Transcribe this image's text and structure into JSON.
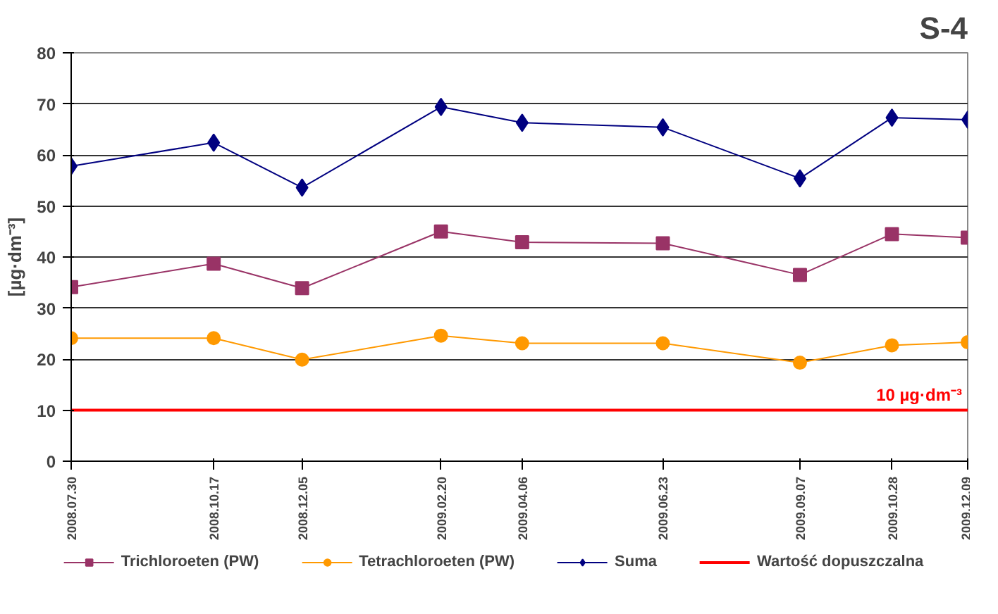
{
  "chart_data": {
    "type": "line",
    "title": "S-4",
    "ylabel": "[µg·dm⁻³]",
    "x": [
      "2008-07-30",
      "2008-10-17",
      "2008-12-05",
      "2009-02-20",
      "2009-04-06",
      "2009-06-23",
      "2009-09-07",
      "2009-10-28",
      "2009-12-09"
    ],
    "xlim": [
      "2008-07-30",
      "2009-12-09"
    ],
    "xticks": [
      {
        "value": "2008-07-30",
        "label": "2008.07.30"
      },
      {
        "value": "2008-10-17",
        "label": "2008.10.17"
      },
      {
        "value": "2008-12-05",
        "label": "2008.12.05"
      },
      {
        "value": "2009-02-20",
        "label": "2009.02.20"
      },
      {
        "value": "2009-04-06",
        "label": "2009.04.06"
      },
      {
        "value": "2009-06-23",
        "label": "2009.06.23"
      },
      {
        "value": "2009-09-07",
        "label": "2009.09.07"
      },
      {
        "value": "2009-10-28",
        "label": "2009.10.28"
      },
      {
        "value": "2009-12-09",
        "label": "2009.12.09"
      }
    ],
    "ylim": [
      0,
      80
    ],
    "yticks": [
      0,
      10,
      20,
      30,
      40,
      50,
      60,
      70,
      80
    ],
    "series": [
      {
        "name": "Trichloroeten (PW)",
        "color": "#993366",
        "marker": "square",
        "values": [
          34.1,
          38.7,
          33.9,
          45.0,
          42.9,
          42.7,
          36.5,
          44.5,
          43.8
        ]
      },
      {
        "name": "Tetrachloroeten (PW)",
        "color": "#ff9900",
        "marker": "circle",
        "values": [
          24.1,
          24.1,
          19.9,
          24.6,
          23.1,
          23.1,
          19.3,
          22.7,
          23.3
        ]
      },
      {
        "name": "Suma",
        "color": "#000080",
        "marker": "diamond",
        "values": [
          57.8,
          62.4,
          53.6,
          69.4,
          66.3,
          65.4,
          55.4,
          67.3,
          66.9
        ]
      },
      {
        "name": "Wartość dopuszczalna",
        "color": "#ff0000",
        "marker": "none",
        "values": [
          10,
          10,
          10,
          10,
          10,
          10,
          10,
          10,
          10
        ]
      }
    ],
    "annotations": [
      {
        "text": "10 µg·dm⁻³",
        "x": "2009-12-09",
        "y": 10
      }
    ],
    "grid": "y",
    "legend": "bottom",
    "line_style": "solid"
  }
}
